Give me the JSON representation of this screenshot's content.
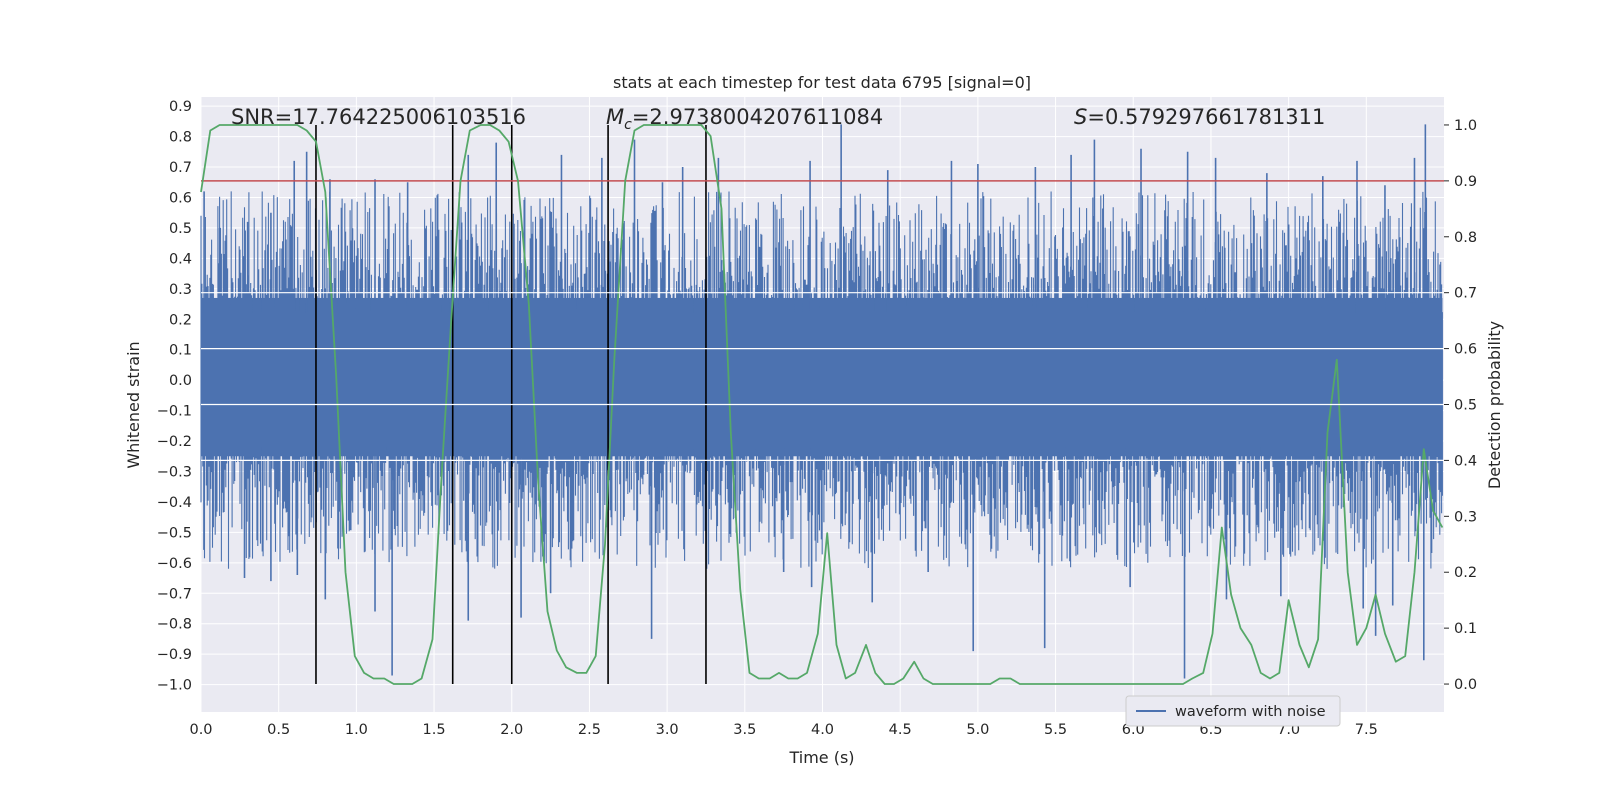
{
  "colors": {
    "background": "#ffffff",
    "plot_background": "#eaeaf2",
    "grid": "#ffffff",
    "waveform": "#4c72b0",
    "probability": "#55a868",
    "threshold": "#c44e52",
    "markers": "#000000",
    "text": "#262626"
  },
  "chart_data": {
    "type": "line",
    "title": "stats at each timestep for test data 6795 [signal=0]",
    "xlabel": "Time (s)",
    "ylabel": "Whitened strain",
    "y2label": "Detection probability",
    "xlim": [
      0.0,
      8.0
    ],
    "ylim": [
      -1.09,
      0.93
    ],
    "y2lim": [
      -0.05,
      1.05
    ],
    "x_ticks": [
      "0.0",
      "0.5",
      "1.0",
      "1.5",
      "2.0",
      "2.5",
      "3.0",
      "3.5",
      "4.0",
      "4.5",
      "5.0",
      "5.5",
      "6.0",
      "6.5",
      "7.0",
      "7.5"
    ],
    "y_ticks": [
      "0.9",
      "0.8",
      "0.7",
      "0.6",
      "0.5",
      "0.4",
      "0.3",
      "0.2",
      "0.1",
      "0.0",
      "−0.1",
      "−0.2",
      "−0.3",
      "−0.4",
      "−0.5",
      "−0.6",
      "−0.7",
      "−0.8",
      "−0.9",
      "−1.0"
    ],
    "y2_ticks": [
      "1.0",
      "0.9",
      "0.8",
      "0.7",
      "0.6",
      "0.5",
      "0.4",
      "0.3",
      "0.2",
      "0.1",
      "0.0"
    ],
    "grid": true,
    "legend": {
      "location": "lower-right",
      "entries": [
        "waveform with noise"
      ]
    },
    "annotations": {
      "snr": "SNR=17.764225006103516",
      "mc_symbol": "M",
      "mc_sub": "c",
      "mc_value": "=2.9738004207611084",
      "s_symbol": "S",
      "s_value": "=0.579297661781311"
    },
    "threshold_probability": 0.9,
    "vertical_markers": [
      0.74,
      1.62,
      2.0,
      2.62,
      3.25
    ],
    "waveform_summary": {
      "description_points": [
        0.0,
        8.0
      ],
      "typical_upper": 0.45,
      "typical_lower": -0.45,
      "peak_max": 0.84,
      "peak_min": -0.98
    },
    "series": [
      {
        "name": "waveform with noise",
        "kind": "strain",
        "spikes": [
          [
            0.02,
            0.62
          ],
          [
            0.12,
            0.5
          ],
          [
            0.3,
            0.52
          ],
          [
            0.45,
            0.55
          ],
          [
            0.6,
            0.72
          ],
          [
            0.68,
            0.75
          ],
          [
            0.83,
            0.66
          ],
          [
            1.12,
            0.66
          ],
          [
            1.33,
            0.65
          ],
          [
            1.72,
            0.74
          ],
          [
            1.9,
            0.78
          ],
          [
            2.32,
            0.74
          ],
          [
            2.58,
            0.73
          ],
          [
            2.79,
            0.79
          ],
          [
            2.97,
            0.65
          ],
          [
            3.1,
            0.7
          ],
          [
            3.33,
            0.73
          ],
          [
            3.92,
            0.72
          ],
          [
            4.12,
            0.84
          ],
          [
            4.42,
            0.69
          ],
          [
            4.83,
            0.72
          ],
          [
            5.0,
            0.71
          ],
          [
            5.37,
            0.7
          ],
          [
            5.6,
            0.74
          ],
          [
            5.75,
            0.79
          ],
          [
            6.05,
            0.76
          ],
          [
            6.35,
            0.75
          ],
          [
            6.53,
            0.73
          ],
          [
            6.86,
            0.68
          ],
          [
            7.22,
            0.67
          ],
          [
            7.44,
            0.72
          ],
          [
            7.62,
            0.64
          ],
          [
            7.81,
            0.73
          ],
          [
            7.88,
            0.84
          ],
          [
            0.28,
            -0.65
          ],
          [
            0.45,
            -0.66
          ],
          [
            0.62,
            -0.64
          ],
          [
            0.8,
            -0.72
          ],
          [
            1.12,
            -0.76
          ],
          [
            1.23,
            -0.97
          ],
          [
            1.72,
            -0.79
          ],
          [
            2.06,
            -0.78
          ],
          [
            2.25,
            -0.7
          ],
          [
            2.9,
            -0.85
          ],
          [
            3.75,
            -0.63
          ],
          [
            3.93,
            -0.68
          ],
          [
            4.32,
            -0.73
          ],
          [
            4.68,
            -0.63
          ],
          [
            4.97,
            -0.89
          ],
          [
            5.43,
            -0.88
          ],
          [
            5.98,
            -0.68
          ],
          [
            6.33,
            -0.98
          ],
          [
            6.6,
            -0.72
          ],
          [
            6.95,
            -0.71
          ],
          [
            7.48,
            -0.75
          ],
          [
            7.56,
            -0.84
          ],
          [
            7.67,
            -0.74
          ],
          [
            7.87,
            -0.92
          ]
        ]
      },
      {
        "name": "",
        "kind": "probability",
        "x": [
          0.0,
          0.06,
          0.12,
          0.19,
          0.25,
          0.31,
          0.37,
          0.44,
          0.5,
          0.56,
          0.62,
          0.68,
          0.74,
          0.8,
          0.87,
          0.93,
          0.99,
          1.05,
          1.11,
          1.18,
          1.24,
          1.3,
          1.36,
          1.42,
          1.49,
          1.55,
          1.61,
          1.67,
          1.73,
          1.8,
          1.86,
          1.92,
          1.98,
          2.04,
          2.11,
          2.17,
          2.23,
          2.29,
          2.35,
          2.42,
          2.48,
          2.54,
          2.6,
          2.66,
          2.73,
          2.79,
          2.85,
          2.91,
          2.97,
          3.04,
          3.1,
          3.16,
          3.22,
          3.28,
          3.35,
          3.41,
          3.47,
          3.53,
          3.59,
          3.66,
          3.72,
          3.78,
          3.84,
          3.9,
          3.97,
          4.03,
          4.09,
          4.15,
          4.21,
          4.28,
          4.34,
          4.4,
          4.46,
          4.52,
          4.59,
          4.65,
          4.71,
          4.77,
          4.83,
          4.9,
          4.96,
          5.02,
          5.08,
          5.14,
          5.21,
          5.27,
          5.33,
          5.39,
          5.45,
          5.52,
          5.58,
          5.64,
          5.7,
          5.76,
          5.83,
          5.89,
          5.95,
          6.01,
          6.07,
          6.14,
          6.2,
          6.26,
          6.32,
          6.38,
          6.45,
          6.51,
          6.57,
          6.63,
          6.69,
          6.76,
          6.82,
          6.88,
          6.94,
          7.0,
          7.07,
          7.13,
          7.19,
          7.25,
          7.31,
          7.38,
          7.44,
          7.5,
          7.56,
          7.62,
          7.69,
          7.75,
          7.81,
          7.87,
          7.93,
          7.99
        ],
        "y": [
          0.88,
          0.99,
          1.0,
          1.0,
          1.0,
          1.0,
          1.0,
          1.0,
          1.0,
          1.0,
          1.0,
          0.99,
          0.97,
          0.88,
          0.55,
          0.2,
          0.05,
          0.02,
          0.01,
          0.01,
          0.0,
          0.0,
          0.0,
          0.01,
          0.08,
          0.38,
          0.65,
          0.9,
          0.99,
          1.0,
          1.0,
          0.99,
          0.97,
          0.9,
          0.68,
          0.36,
          0.13,
          0.06,
          0.03,
          0.02,
          0.02,
          0.05,
          0.25,
          0.58,
          0.9,
          0.99,
          1.0,
          1.0,
          1.0,
          1.0,
          1.0,
          1.0,
          1.0,
          0.98,
          0.85,
          0.45,
          0.17,
          0.02,
          0.01,
          0.01,
          0.02,
          0.01,
          0.01,
          0.02,
          0.09,
          0.27,
          0.07,
          0.01,
          0.02,
          0.07,
          0.02,
          0.0,
          0.0,
          0.01,
          0.04,
          0.01,
          0.0,
          0.0,
          0.0,
          0.0,
          0.0,
          0.0,
          0.0,
          0.01,
          0.01,
          0.0,
          0.0,
          0.0,
          0.0,
          0.0,
          0.0,
          0.0,
          0.0,
          0.0,
          0.0,
          0.0,
          0.0,
          0.0,
          0.0,
          0.0,
          0.0,
          0.0,
          0.0,
          0.01,
          0.02,
          0.09,
          0.28,
          0.16,
          0.1,
          0.07,
          0.02,
          0.01,
          0.02,
          0.15,
          0.07,
          0.03,
          0.08,
          0.45,
          0.58,
          0.2,
          0.07,
          0.1,
          0.16,
          0.09,
          0.04,
          0.05,
          0.2,
          0.42,
          0.31,
          0.28
        ]
      }
    ]
  }
}
